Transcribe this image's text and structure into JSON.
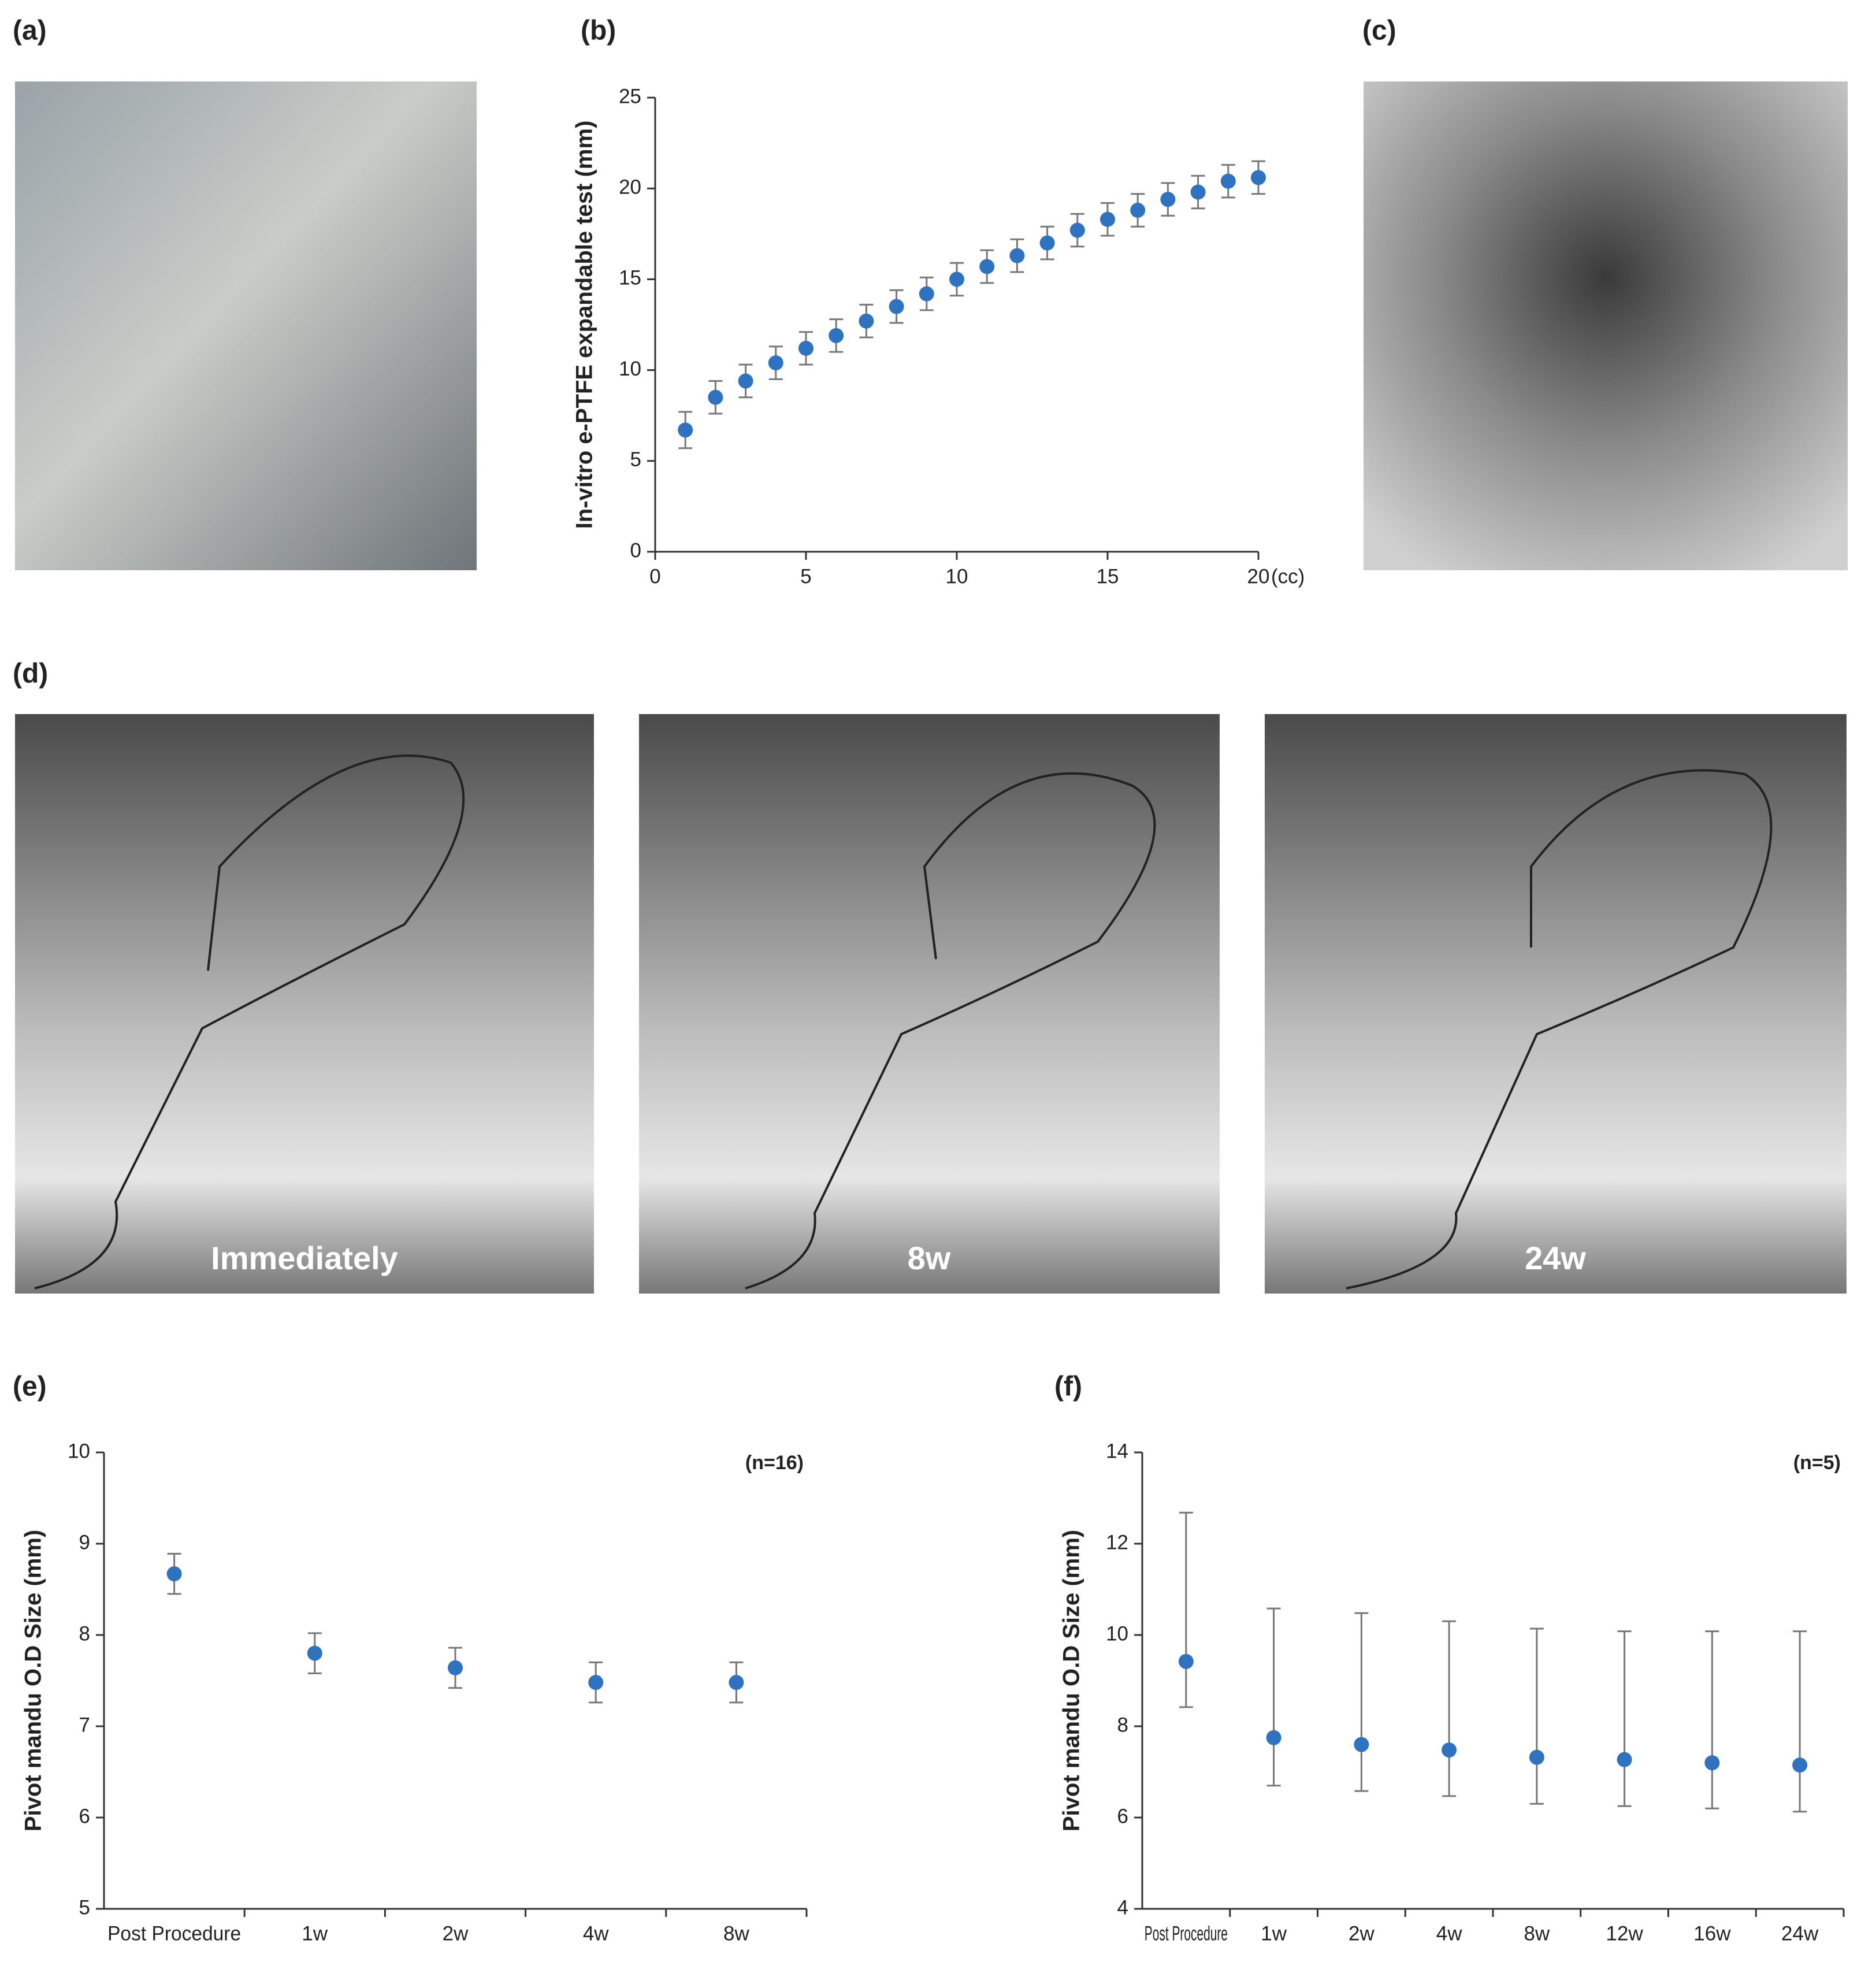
{
  "panels": {
    "a": "(a)",
    "b": "(b)",
    "c": "(c)",
    "d": "(d)",
    "e": "(e)",
    "f": "(f)"
  },
  "image_labels": [
    "Immediately",
    "8w",
    "24w"
  ],
  "chart_data": [
    {
      "type": "scatter",
      "ylabel": "In-vitro e-PTFE expandable test (mm)",
      "xlabel": "(cc)",
      "x": [
        1,
        2,
        3,
        4,
        5,
        6,
        7,
        8,
        9,
        10,
        11,
        12,
        13,
        14,
        15,
        16,
        17,
        18,
        19,
        20
      ],
      "values": [
        6.7,
        8.5,
        9.4,
        10.4,
        11.2,
        11.9,
        12.7,
        13.5,
        14.2,
        15.0,
        15.7,
        16.3,
        17.0,
        17.7,
        18.3,
        18.8,
        19.4,
        19.8,
        20.4,
        20.6
      ],
      "errors": [
        1.0,
        0.9,
        0.9,
        0.9,
        0.9,
        0.9,
        0.9,
        0.9,
        0.9,
        0.9,
        0.9,
        0.9,
        0.9,
        0.9,
        0.9,
        0.9,
        0.9,
        0.9,
        0.9,
        0.9
      ],
      "color": "#2f72c0",
      "error_color": "#777777",
      "xlim": [
        0,
        20
      ],
      "xticks": [
        0,
        5,
        10,
        15,
        20
      ],
      "ylim": [
        0,
        25
      ],
      "yticks": [
        0,
        5,
        10,
        15,
        20,
        25
      ]
    },
    {
      "type": "category-points",
      "ylabel": "Pivot mandu O.D Size (mm)",
      "annotation": "(n=16)",
      "categories": [
        "Post Procedure",
        "1w",
        "2w",
        "4w",
        "8w"
      ],
      "values": [
        8.67,
        7.8,
        7.64,
        7.48,
        7.48
      ],
      "errors": [
        0.22,
        0.22,
        0.22,
        0.22,
        0.22
      ],
      "color": "#2f72c0",
      "error_color": "#777777",
      "ylim": [
        5,
        10
      ],
      "yticks": [
        5,
        6,
        7,
        8,
        9,
        10
      ]
    },
    {
      "type": "category-points",
      "ylabel": "Pivot mandu O.D Size (mm)",
      "annotation": "(n=5)",
      "categories": [
        "Post Procedure",
        "1w",
        "2w",
        "4w",
        "8w",
        "12w",
        "16w",
        "24w"
      ],
      "values": [
        9.42,
        7.75,
        7.6,
        7.48,
        7.32,
        7.27,
        7.2,
        7.15
      ],
      "errors_low": [
        1.0,
        1.05,
        1.02,
        1.01,
        1.02,
        1.02,
        1.0,
        1.02
      ],
      "errors_high": [
        3.26,
        2.83,
        2.88,
        2.82,
        2.82,
        2.81,
        2.88,
        2.93
      ],
      "color": "#2f72c0",
      "error_color": "#777777",
      "ylim": [
        4,
        14
      ],
      "yticks": [
        4,
        6,
        8,
        10,
        12,
        14
      ]
    }
  ]
}
